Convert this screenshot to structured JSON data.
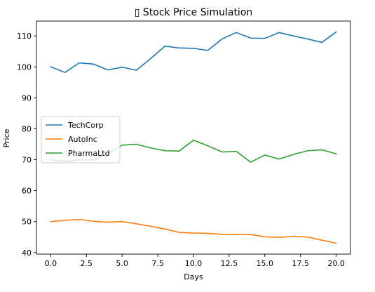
{
  "chart_data": {
    "type": "line",
    "title": "▯ Stock Price Simulation",
    "xlabel": "Days",
    "ylabel": "Price",
    "xlim": [
      -1,
      21
    ],
    "ylim": [
      39.5,
      114.8
    ],
    "grid": false,
    "legend_position": "center-left",
    "x": [
      0,
      1,
      2,
      3,
      4,
      5,
      6,
      7,
      8,
      9,
      10,
      11,
      12,
      13,
      14,
      15,
      16,
      17,
      18,
      19,
      20
    ],
    "x_ticks": [
      0,
      2.5,
      5,
      7.5,
      10,
      12.5,
      15,
      17.5,
      20
    ],
    "x_tick_labels": [
      "0.0",
      "2.5",
      "5.0",
      "7.5",
      "10.0",
      "12.5",
      "15.0",
      "17.5",
      "20.0"
    ],
    "y_ticks": [
      40,
      50,
      60,
      70,
      80,
      90,
      100,
      110
    ],
    "y_tick_labels": [
      "40",
      "50",
      "60",
      "70",
      "80",
      "90",
      "100",
      "110"
    ],
    "series": [
      {
        "name": "TechCorp",
        "color": "#1f77b4",
        "values": [
          100.0,
          98.2,
          101.3,
          100.9,
          99.0,
          99.9,
          98.9,
          102.7,
          106.7,
          106.1,
          106.0,
          105.3,
          109.0,
          111.1,
          109.3,
          109.2,
          111.1,
          110.0,
          109.0,
          107.9,
          111.3
        ]
      },
      {
        "name": "AutoInc",
        "color": "#ff7f0e",
        "values": [
          50.0,
          50.4,
          50.7,
          50.1,
          49.8,
          50.0,
          49.3,
          48.5,
          47.6,
          46.5,
          46.3,
          46.2,
          45.9,
          45.9,
          45.8,
          45.1,
          44.9,
          45.3,
          45.0,
          44.0,
          43.0
        ]
      },
      {
        "name": "PharmaLtd",
        "color": "#2ca02c",
        "values": [
          70.0,
          69.4,
          70.0,
          69.9,
          72.0,
          74.7,
          75.0,
          73.8,
          72.9,
          72.8,
          76.3,
          74.5,
          72.5,
          72.7,
          69.2,
          71.5,
          70.2,
          71.7,
          72.9,
          73.2,
          71.9
        ]
      }
    ]
  }
}
